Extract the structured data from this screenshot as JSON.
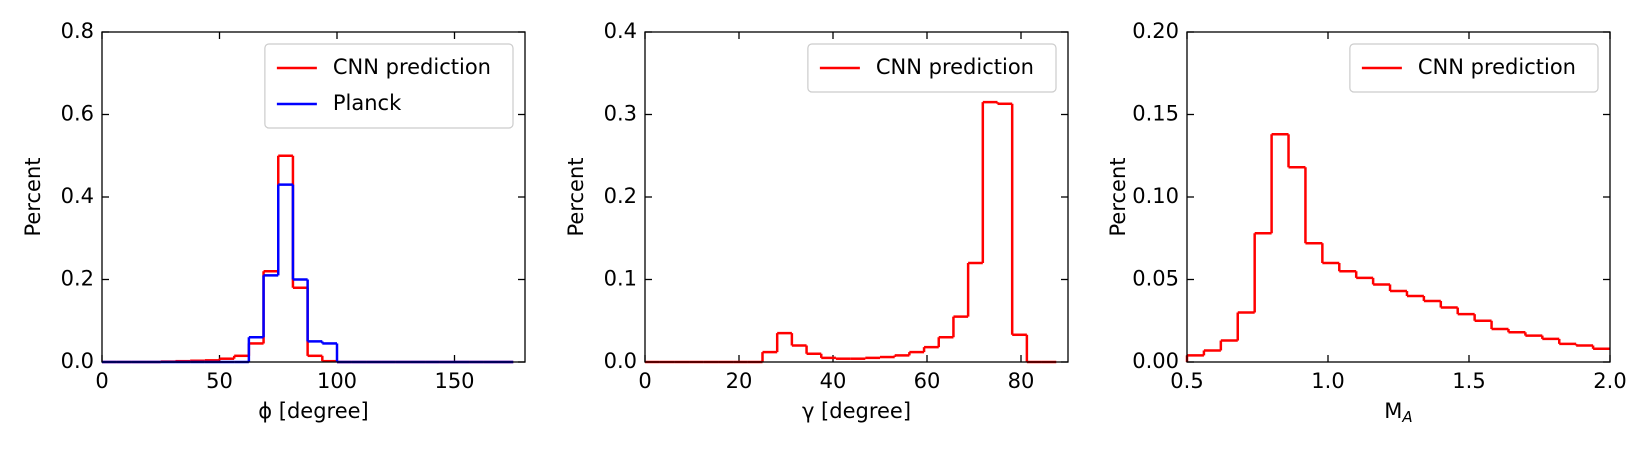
{
  "chart_data": [
    {
      "type": "step-histogram",
      "xlabel": "ϕ [degree]",
      "ylabel": "Percent",
      "bins": [
        0,
        6.25,
        12.5,
        18.75,
        25,
        31.25,
        37.5,
        43.75,
        50,
        56.25,
        62.5,
        68.75,
        75,
        81.25,
        87.5,
        93.75,
        100,
        106.25,
        112.5,
        118.75,
        125,
        131.25,
        137.5,
        143.75,
        150,
        156.25,
        162.5,
        168.75,
        175
      ],
      "series": [
        {
          "name": "CNN prediction",
          "color": "#ff0000",
          "values": [
            0,
            0,
            0,
            0,
            0.001,
            0.002,
            0.003,
            0.004,
            0.008,
            0.015,
            0.045,
            0.22,
            0.5,
            0.18,
            0.015,
            0.002,
            0,
            0,
            0,
            0,
            0,
            0,
            0,
            0,
            0,
            0,
            0,
            0
          ]
        },
        {
          "name": "Planck",
          "color": "#0000ff",
          "values": [
            0,
            0,
            0,
            0,
            0,
            0,
            0,
            0,
            0,
            0,
            0.06,
            0.21,
            0.43,
            0.2,
            0.05,
            0.045,
            0,
            0,
            0,
            0,
            0,
            0,
            0,
            0,
            0,
            0,
            0,
            0
          ]
        }
      ],
      "xlim": [
        0,
        180
      ],
      "xticks": [
        0,
        50,
        100,
        150
      ],
      "ylim": [
        0,
        0.8
      ],
      "yticks": [
        {
          "value": 0,
          "label": "0.0"
        },
        0.2,
        0.4,
        0.6,
        0.8
      ],
      "legend": "upper right"
    },
    {
      "type": "step-histogram",
      "xlabel": "γ [degree]",
      "ylabel": "Percent",
      "bins": [
        0,
        3.125,
        6.25,
        9.375,
        12.5,
        15.625,
        18.75,
        21.875,
        25,
        28.125,
        31.25,
        34.375,
        37.5,
        40.625,
        43.75,
        46.875,
        50,
        53.125,
        56.25,
        59.375,
        62.5,
        65.625,
        68.75,
        71.875,
        75,
        78.125,
        81.25,
        84.375,
        87.5
      ],
      "series": [
        {
          "name": "CNN prediction",
          "color": "#ff0000",
          "values": [
            0,
            0,
            0,
            0,
            0,
            0,
            0,
            0,
            0.012,
            0.035,
            0.02,
            0.01,
            0.005,
            0.004,
            0.004,
            0.005,
            0.006,
            0.008,
            0.012,
            0.018,
            0.03,
            0.055,
            0.12,
            0.315,
            0.313,
            0.033,
            0,
            0
          ]
        }
      ],
      "xlim": [
        0,
        90
      ],
      "xticks": [
        0,
        20,
        40,
        60,
        80
      ],
      "ylim": [
        0,
        0.4
      ],
      "yticks": [
        {
          "value": 0,
          "label": "0.0"
        },
        0.1,
        0.2,
        0.3,
        0.4
      ],
      "legend": "upper right"
    },
    {
      "type": "step-histogram",
      "xlabel": "M",
      "xlabel_sub": "A",
      "ylabel": "Percent",
      "bins": [
        0.5,
        0.56,
        0.62,
        0.68,
        0.74,
        0.8,
        0.86,
        0.92,
        0.98,
        1.04,
        1.1,
        1.16,
        1.22,
        1.28,
        1.34,
        1.4,
        1.46,
        1.52,
        1.58,
        1.64,
        1.7,
        1.76,
        1.82,
        1.88,
        1.94,
        2.0
      ],
      "series": [
        {
          "name": "CNN prediction",
          "color": "#ff0000",
          "values": [
            0.004,
            0.007,
            0.013,
            0.03,
            0.078,
            0.138,
            0.118,
            0.072,
            0.06,
            0.055,
            0.051,
            0.047,
            0.043,
            0.04,
            0.037,
            0.033,
            0.029,
            0.025,
            0.02,
            0.018,
            0.016,
            0.014,
            0.011,
            0.01,
            0.008
          ]
        }
      ],
      "xlim": [
        0.5,
        2.0
      ],
      "xticks": [
        0.5,
        {
          "value": 1,
          "label": "1.0"
        },
        1.5,
        {
          "value": 2,
          "label": "2.0"
        }
      ],
      "ylim": [
        0,
        0.2
      ],
      "yticks": [
        {
          "value": 0,
          "label": "0.00"
        },
        0.05,
        {
          "value": 0.1,
          "label": "0.10"
        },
        0.15,
        {
          "value": 0.2,
          "label": "0.20"
        }
      ],
      "legend": "upper right"
    }
  ]
}
